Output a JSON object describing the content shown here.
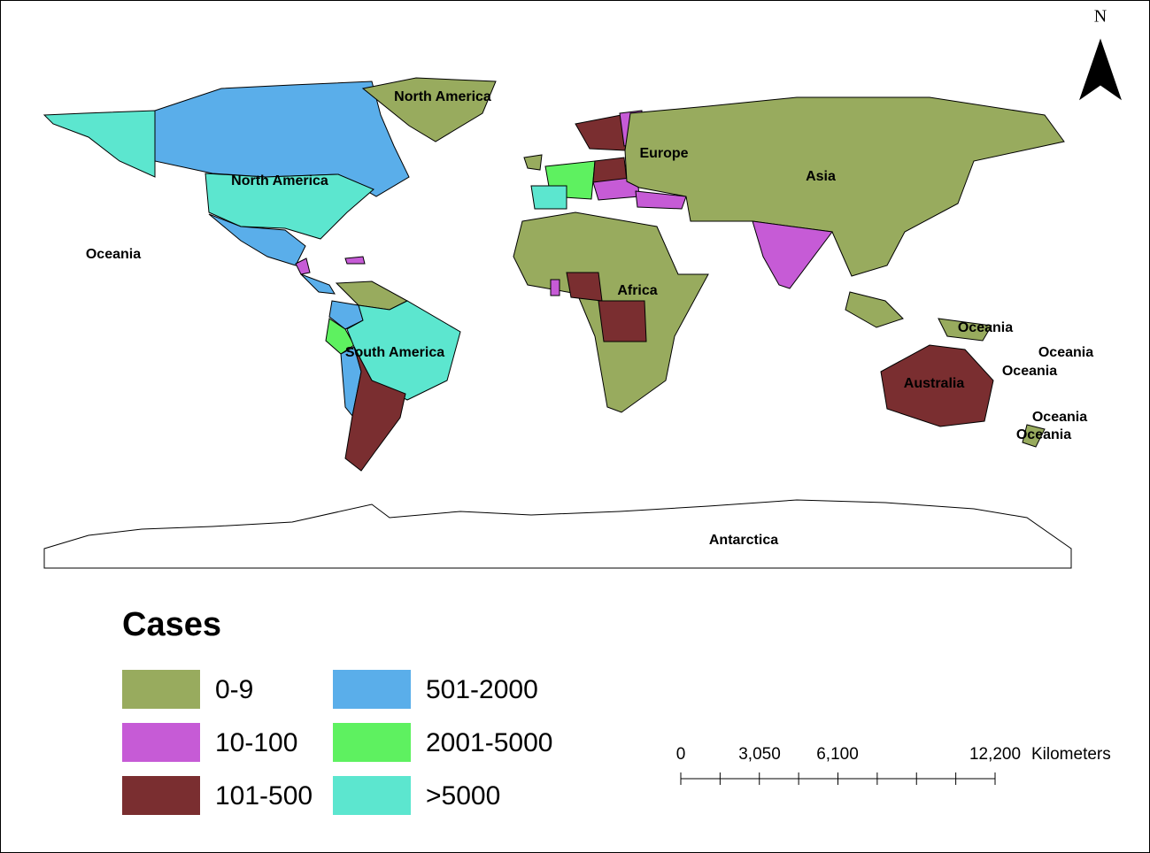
{
  "north_arrow": "N",
  "map": {
    "labels": [
      "North America",
      "North America",
      "Oceania",
      "Europe",
      "Asia",
      "Africa",
      "South America",
      "Australia",
      "Oceania",
      "Oceania",
      "Oceania",
      "Oceania",
      "Oceania",
      "Antarctica"
    ]
  },
  "legend": {
    "title": "Cases",
    "items": [
      {
        "label": "0-9",
        "color": "#98ab5e"
      },
      {
        "label": "10-100",
        "color": "#c65bd6"
      },
      {
        "label": "101-500",
        "color": "#7a2e30"
      },
      {
        "label": "501-2000",
        "color": "#5aaeea"
      },
      {
        "label": "2001-5000",
        "color": "#5ef160"
      },
      {
        "label": ">5000",
        "color": "#5ce6cf"
      }
    ]
  },
  "scale_bar": {
    "ticks": [
      "0",
      "3,050",
      "6,100",
      "12,200"
    ],
    "unit": "Kilometers"
  }
}
